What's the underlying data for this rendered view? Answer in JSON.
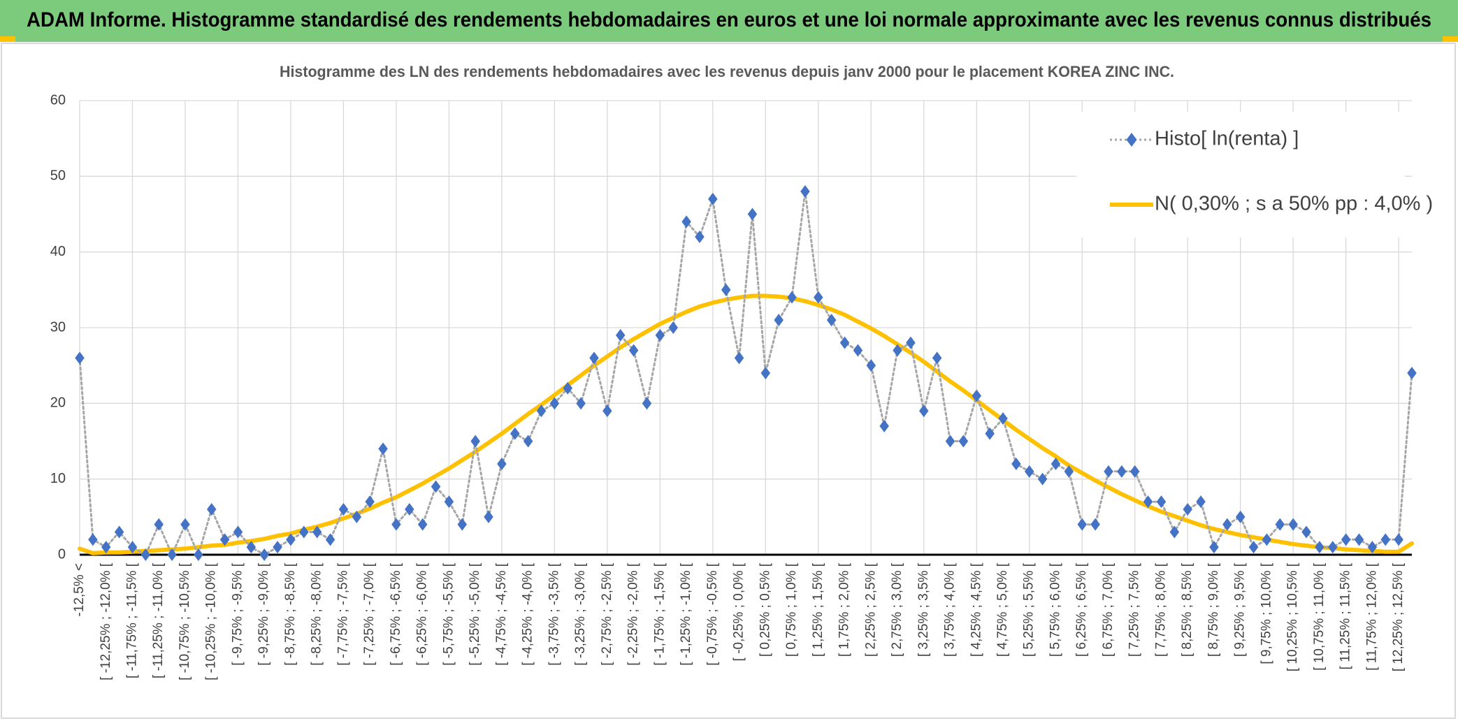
{
  "chart_data": {
    "type": "line",
    "header": "ADAM Informe. Histogramme standardisé des rendements hebdomadaires en euros et une loi normale approximante avec les revenus connus distribués",
    "title": "Histogramme des LN des rendements hebdomadaires avec les revenus depuis janv 2000 pour le placement KOREA ZINC INC.",
    "categories": [
      "-12,5% <",
      null,
      "[ -12,25% ; -12,0% [",
      null,
      "[ -11,75% ; -11,5% [",
      null,
      "[ -11,25% ; -11,0% [",
      null,
      "[ -10,75% ; -10,5% [",
      null,
      "[ -10,25% ; -10,0% [",
      null,
      "[ -9,75% ; -9,5% [",
      null,
      "[ -9,25% ; -9,0% [",
      null,
      "[ -8,75% ; -8,5% [",
      null,
      "[ -8,25% ; -8,0% [",
      null,
      "[ -7,75% ; -7,5% [",
      null,
      "[ -7,25% ; -7,0% [",
      null,
      "[ -6,75% ; -6,5% [",
      null,
      "[ -6,25% ; -6,0% [",
      null,
      "[ -5,75% ; -5,5% [",
      null,
      "[ -5,25% ; -5,0% [",
      null,
      "[ -4,75% ; -4,5% [",
      null,
      "[ -4,25% ; -4,0% [",
      null,
      "[ -3,75% ; -3,5% [",
      null,
      "[ -3,25% ; -3,0% [",
      null,
      "[ -2,75% ; -2,5% [",
      null,
      "[ -2,25% ; -2,0% [",
      null,
      "[ -1,75% ; -1,5% [",
      null,
      "[ -1,25% ; -1,0% [",
      null,
      "[ -0,75% ; -0,5% [",
      null,
      "[ -0,25% ; 0,0% [",
      null,
      "[ 0,25% ; 0,5% [",
      null,
      "[ 0,75% ; 1,0% [",
      null,
      "[ 1,25% ; 1,5% [",
      null,
      "[ 1,75% ; 2,0% [",
      null,
      "[ 2,25% ; 2,5% [",
      null,
      "[ 2,75% ; 3,0% [",
      null,
      "[ 3,25% ; 3,5% [",
      null,
      "[ 3,75% ; 4,0% [",
      null,
      "[ 4,25% ; 4,5% [",
      null,
      "[ 4,75% ; 5,0% [",
      null,
      "[ 5,25% ; 5,5% [",
      null,
      "[ 5,75% ; 6,0% [",
      null,
      "[ 6,25% ; 6,5% [",
      null,
      "[ 6,75% ; 7,0% [",
      null,
      "[ 7,25% ; 7,5% [",
      null,
      "[ 7,75% ; 8,0% [",
      null,
      "[ 8,25% ; 8,5% [",
      null,
      "[ 8,75% ; 9,0% [",
      null,
      "[ 9,25% ; 9,5% [",
      null,
      "[ 9,75% ; 10,0% [",
      null,
      "[ 10,25% ; 10,5% [",
      null,
      "[ 10,75% ; 11,0% [",
      null,
      "[ 11,25% ; 11,5% [",
      null,
      "[ 11,75% ; 12,0% [",
      null,
      "[ 12,25% ; 12,5% [",
      null
    ],
    "series": [
      {
        "name": "Histo[ ln(renta) ]",
        "color": "#4472c4",
        "line_color": "#a6a6a6",
        "line_style": "dotted",
        "marker": "diamond",
        "values": [
          26,
          2,
          1,
          3,
          1,
          0,
          4,
          0,
          4,
          0,
          6,
          2,
          3,
          1,
          0,
          1,
          2,
          3,
          3,
          2,
          6,
          5,
          7,
          14,
          4,
          6,
          4,
          9,
          7,
          4,
          15,
          5,
          12,
          16,
          15,
          19,
          20,
          22,
          20,
          26,
          19,
          29,
          27,
          20,
          29,
          30,
          44,
          42,
          47,
          35,
          26,
          45,
          24,
          31,
          34,
          48,
          34,
          31,
          28,
          27,
          25,
          17,
          27,
          28,
          19,
          26,
          15,
          15,
          21,
          16,
          18,
          12,
          11,
          10,
          12,
          11,
          4,
          4,
          11,
          11,
          11,
          7,
          7,
          3,
          6,
          7,
          1,
          4,
          5,
          1,
          2,
          4,
          4,
          3,
          1,
          1,
          2,
          2,
          1,
          2,
          2,
          24
        ]
      },
      {
        "name": "N( 0,30% ; s a 50% pp : 4,0% )",
        "color": "#ffc000",
        "line_style": "solid",
        "marker": "none",
        "values": [
          0.8,
          0.2,
          0.3,
          0.3,
          0.4,
          0.5,
          0.6,
          0.7,
          0.8,
          1.0,
          1.2,
          1.3,
          1.6,
          1.8,
          2.1,
          2.5,
          2.8,
          3.3,
          3.7,
          4.2,
          4.8,
          5.4,
          6.1,
          6.9,
          7.6,
          8.5,
          9.4,
          10.4,
          11.4,
          12.5,
          13.6,
          14.8,
          16.0,
          17.3,
          18.6,
          19.8,
          21.1,
          22.4,
          23.7,
          25.0,
          26.2,
          27.4,
          28.5,
          29.5,
          30.5,
          31.3,
          32.1,
          32.8,
          33.3,
          33.7,
          34.0,
          34.2,
          34.2,
          34.1,
          33.9,
          33.5,
          33.0,
          32.4,
          31.7,
          30.8,
          29.9,
          28.9,
          27.8,
          26.7,
          25.5,
          24.2,
          22.9,
          21.7,
          20.4,
          19.1,
          17.8,
          16.5,
          15.3,
          14.1,
          13.0,
          11.8,
          10.8,
          9.8,
          8.9,
          8.0,
          7.2,
          6.4,
          5.7,
          5.1,
          4.5,
          3.9,
          3.4,
          3.0,
          2.6,
          2.3,
          2.0,
          1.7,
          1.4,
          1.2,
          1.0,
          0.9,
          0.7,
          0.6,
          0.5,
          0.4,
          0.4,
          1.5
        ]
      }
    ],
    "ylim": [
      0,
      60
    ],
    "yticks": [
      0,
      10,
      20,
      30,
      40,
      50,
      60
    ],
    "grid": true,
    "legend": "upper right"
  }
}
